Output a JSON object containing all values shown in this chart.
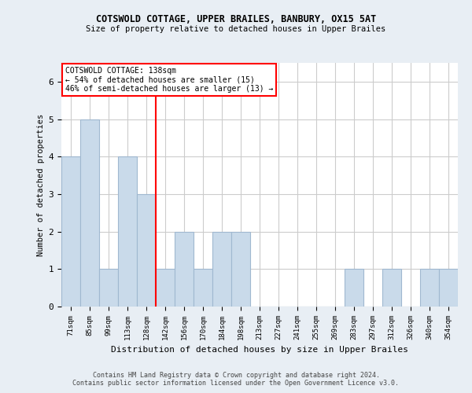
{
  "title1": "COTSWOLD COTTAGE, UPPER BRAILES, BANBURY, OX15 5AT",
  "title2": "Size of property relative to detached houses in Upper Brailes",
  "xlabel": "Distribution of detached houses by size in Upper Brailes",
  "ylabel": "Number of detached properties",
  "categories": [
    "71sqm",
    "85sqm",
    "99sqm",
    "113sqm",
    "128sqm",
    "142sqm",
    "156sqm",
    "170sqm",
    "184sqm",
    "198sqm",
    "213sqm",
    "227sqm",
    "241sqm",
    "255sqm",
    "269sqm",
    "283sqm",
    "297sqm",
    "312sqm",
    "326sqm",
    "340sqm",
    "354sqm"
  ],
  "values": [
    4,
    5,
    1,
    4,
    3,
    1,
    2,
    1,
    2,
    2,
    0,
    0,
    0,
    0,
    0,
    1,
    0,
    1,
    0,
    1,
    1
  ],
  "bar_color": "#c9daea",
  "bar_edge_color": "#a0b8d0",
  "ref_line_label": "COTSWOLD COTTAGE: 138sqm",
  "annotation_line1": "← 54% of detached houses are smaller (15)",
  "annotation_line2": "46% of semi-detached houses are larger (13) →",
  "ylim": [
    0,
    6.5
  ],
  "yticks": [
    0,
    1,
    2,
    3,
    4,
    5,
    6
  ],
  "footer1": "Contains HM Land Registry data © Crown copyright and database right 2024.",
  "footer2": "Contains public sector information licensed under the Open Government Licence v3.0.",
  "background_color": "#e8eef4",
  "plot_bg_color": "#ffffff"
}
